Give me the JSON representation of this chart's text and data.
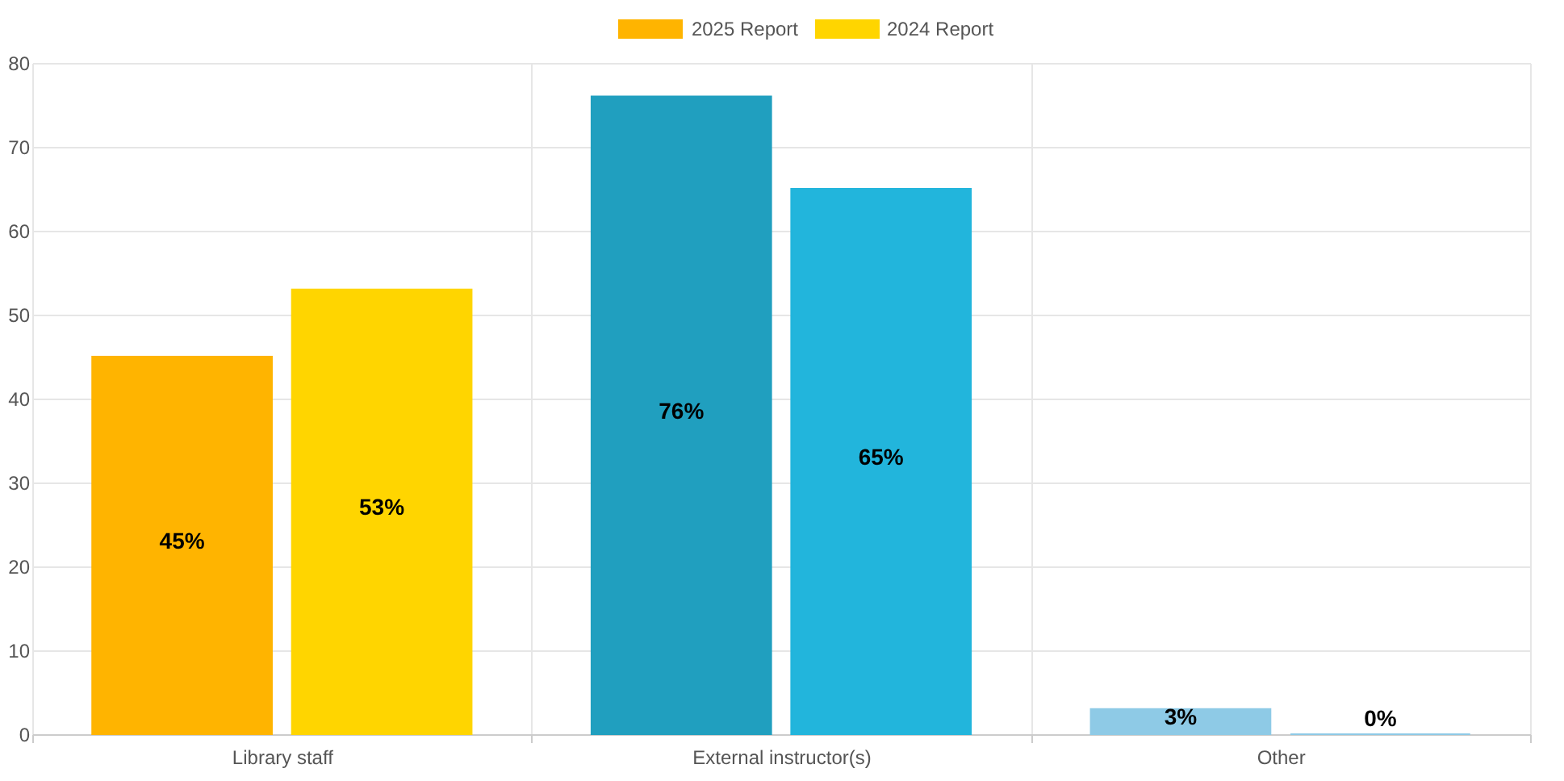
{
  "chart_data": {
    "type": "bar",
    "categories": [
      "Library staff",
      "External instructor(s)",
      "Other"
    ],
    "series": [
      {
        "name": "2025 Report",
        "color": "#ffb400",
        "colors": [
          "#ffb400",
          "#209fbf",
          "#8ecae6"
        ],
        "values": [
          45,
          76,
          3
        ],
        "value_labels": [
          "45%",
          "76%",
          "3%"
        ]
      },
      {
        "name": "2024 Report",
        "color": "#ffd500",
        "colors": [
          "#ffd500",
          "#22b5dc",
          "#8ecae6"
        ],
        "values": [
          53,
          65,
          0
        ],
        "value_labels": [
          "53%",
          "65%",
          "0%"
        ]
      }
    ],
    "ylim": [
      0,
      80
    ],
    "yticks": [
      0,
      10,
      20,
      30,
      40,
      50,
      60,
      70,
      80
    ],
    "grid": true,
    "legend": "top"
  }
}
